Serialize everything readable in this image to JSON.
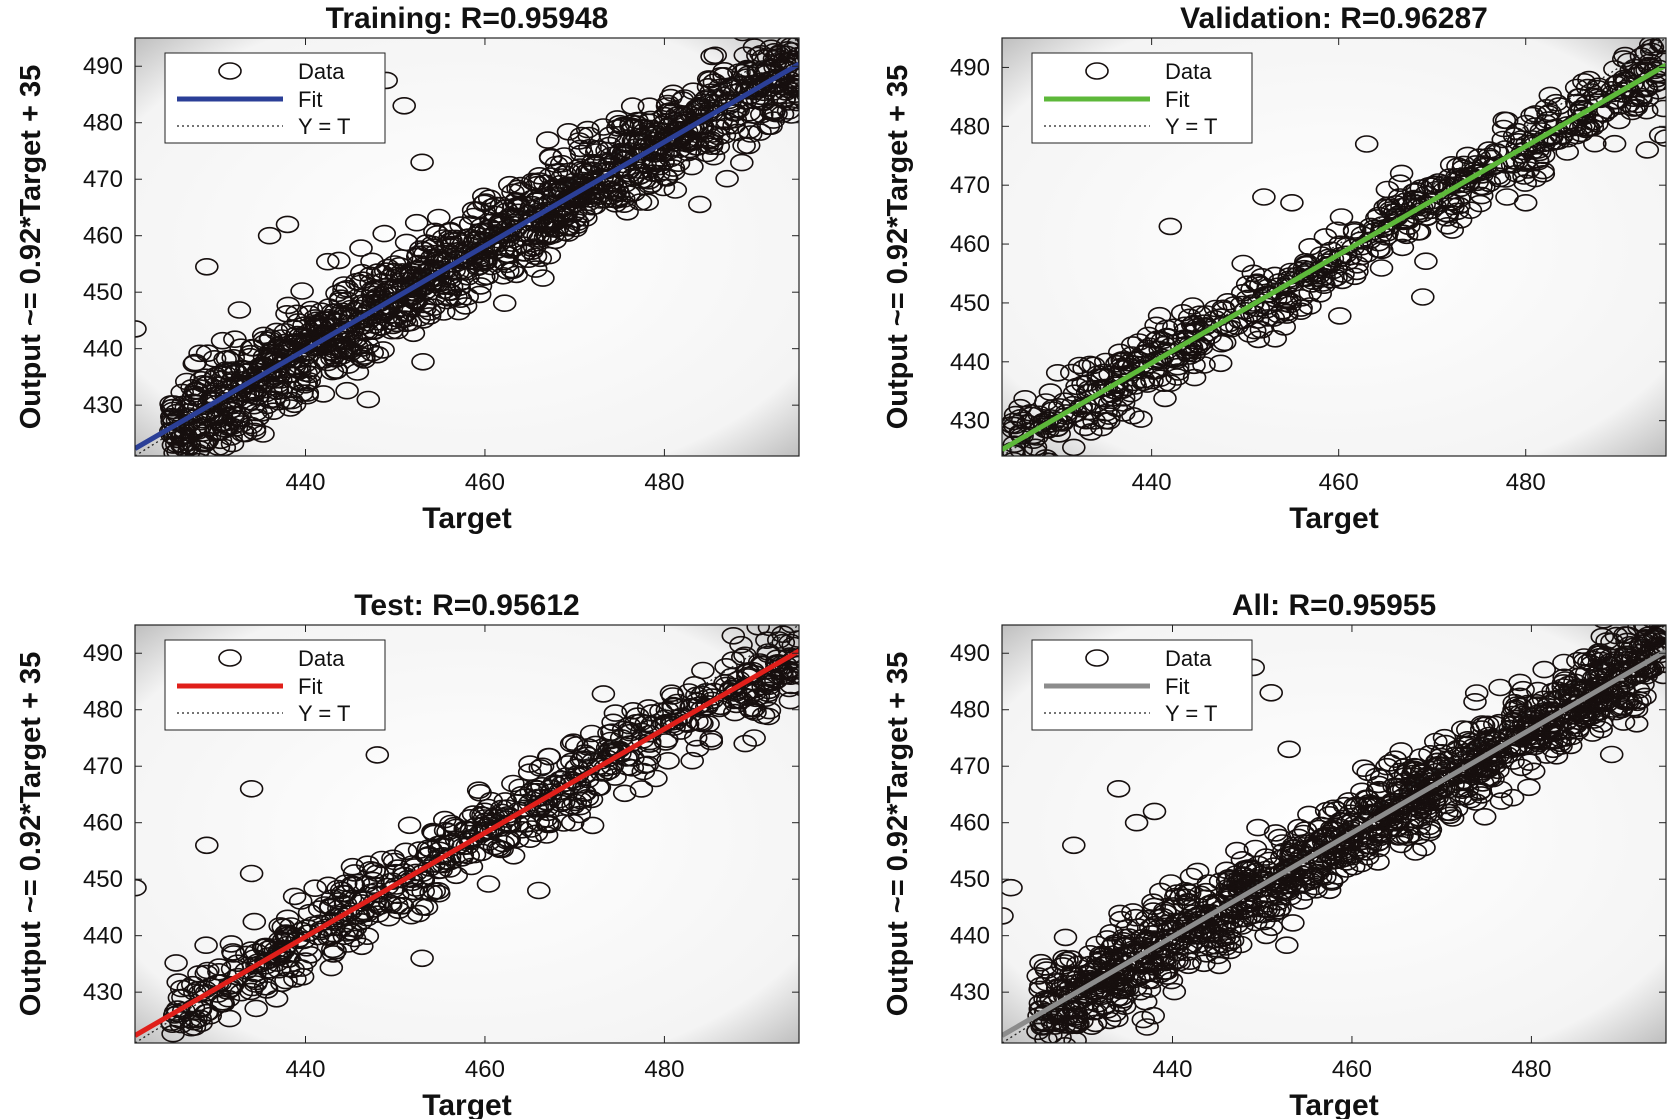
{
  "chart_data": [
    {
      "type": "scatter",
      "title": "Training: R=0.95948",
      "xlabel": "Target",
      "ylabel": "Output ~= 0.92*Target + 35",
      "xlim": [
        421,
        495
      ],
      "ylim": [
        421,
        495
      ],
      "xticks": [
        440,
        460,
        480
      ],
      "yticks": [
        430,
        440,
        450,
        460,
        470,
        480,
        490
      ],
      "fit": {
        "slope": 0.92,
        "intercept": 35,
        "color": "#2b3f97"
      },
      "legend": {
        "placement": "top-left",
        "entries": [
          "Data",
          "Fit",
          "Y = T"
        ]
      },
      "grid": false,
      "cloud": {
        "x_range": [
          425,
          495
        ],
        "spread": 4.2,
        "count": 1300
      },
      "outliers": [
        [
          421,
          443.5
        ],
        [
          429,
          454.5
        ],
        [
          436,
          460
        ],
        [
          438,
          462
        ],
        [
          449,
          487.5
        ],
        [
          451,
          483
        ],
        [
          453,
          473
        ],
        [
          442,
          432
        ],
        [
          433,
          425
        ],
        [
          447,
          431
        ],
        [
          491,
          491.5
        ],
        [
          495,
          487
        ]
      ]
    },
    {
      "type": "scatter",
      "title": "Validation: R=0.96287",
      "xlabel": "Target",
      "ylabel": "Output ~= 0.92*Target + 35",
      "xlim": [
        424,
        495
      ],
      "ylim": [
        424,
        495
      ],
      "xticks": [
        440,
        460,
        480
      ],
      "yticks": [
        430,
        440,
        450,
        460,
        470,
        480,
        490
      ],
      "fit": {
        "slope": 0.92,
        "intercept": 35,
        "color": "#5db83a"
      },
      "legend": {
        "placement": "top-left",
        "entries": [
          "Data",
          "Fit",
          "Y = T"
        ]
      },
      "grid": false,
      "cloud": {
        "x_range": [
          425,
          495
        ],
        "spread": 3.2,
        "count": 650
      },
      "outliers": [
        [
          442,
          463
        ],
        [
          452,
          468
        ],
        [
          455,
          467
        ],
        [
          463,
          477
        ],
        [
          469,
          451
        ],
        [
          478,
          468
        ],
        [
          480,
          467
        ],
        [
          491,
          491
        ],
        [
          493,
          476
        ],
        [
          495,
          478
        ],
        [
          433,
          430
        ],
        [
          437,
          433
        ]
      ]
    },
    {
      "type": "scatter",
      "title": "Test: R=0.95612",
      "xlabel": "Target",
      "ylabel": "Output ~= 0.92*Target + 35",
      "xlim": [
        421,
        495
      ],
      "ylim": [
        421,
        495
      ],
      "xticks": [
        440,
        460,
        480
      ],
      "yticks": [
        430,
        440,
        450,
        460,
        470,
        480,
        490
      ],
      "fit": {
        "slope": 0.92,
        "intercept": 35,
        "color": "#e01f1a"
      },
      "legend": {
        "placement": "top-left",
        "entries": [
          "Data",
          "Fit",
          "Y = T"
        ]
      },
      "grid": false,
      "cloud": {
        "x_range": [
          425,
          495
        ],
        "spread": 3.6,
        "count": 650
      },
      "outliers": [
        [
          421,
          448.5
        ],
        [
          429,
          456
        ],
        [
          434,
          466
        ],
        [
          434,
          451
        ],
        [
          448,
          472
        ],
        [
          453,
          436
        ],
        [
          466,
          448
        ],
        [
          489,
          474
        ],
        [
          490,
          475
        ],
        [
          494,
          487
        ],
        [
          495,
          488
        ]
      ]
    },
    {
      "type": "scatter",
      "title": "All: R=0.95955",
      "xlabel": "Target",
      "ylabel": "Output ~= 0.92*Target + 35",
      "xlim": [
        421,
        495
      ],
      "ylim": [
        421,
        495
      ],
      "xticks": [
        440,
        460,
        480
      ],
      "yticks": [
        430,
        440,
        450,
        460,
        470,
        480,
        490
      ],
      "fit": {
        "slope": 0.92,
        "intercept": 35,
        "color": "#8c8c8c"
      },
      "legend": {
        "placement": "top-left",
        "entries": [
          "Data",
          "Fit",
          "Y = T"
        ]
      },
      "grid": false,
      "cloud": {
        "x_range": [
          425,
          495
        ],
        "spread": 4.2,
        "count": 1300
      },
      "outliers": [
        [
          421,
          443.5
        ],
        [
          422,
          448.5
        ],
        [
          429,
          456
        ],
        [
          434,
          466
        ],
        [
          436,
          460
        ],
        [
          438,
          462
        ],
        [
          449,
          487.5
        ],
        [
          451,
          483
        ],
        [
          453,
          473
        ],
        [
          433,
          425
        ],
        [
          491,
          491.5
        ],
        [
          495,
          488
        ]
      ]
    }
  ]
}
